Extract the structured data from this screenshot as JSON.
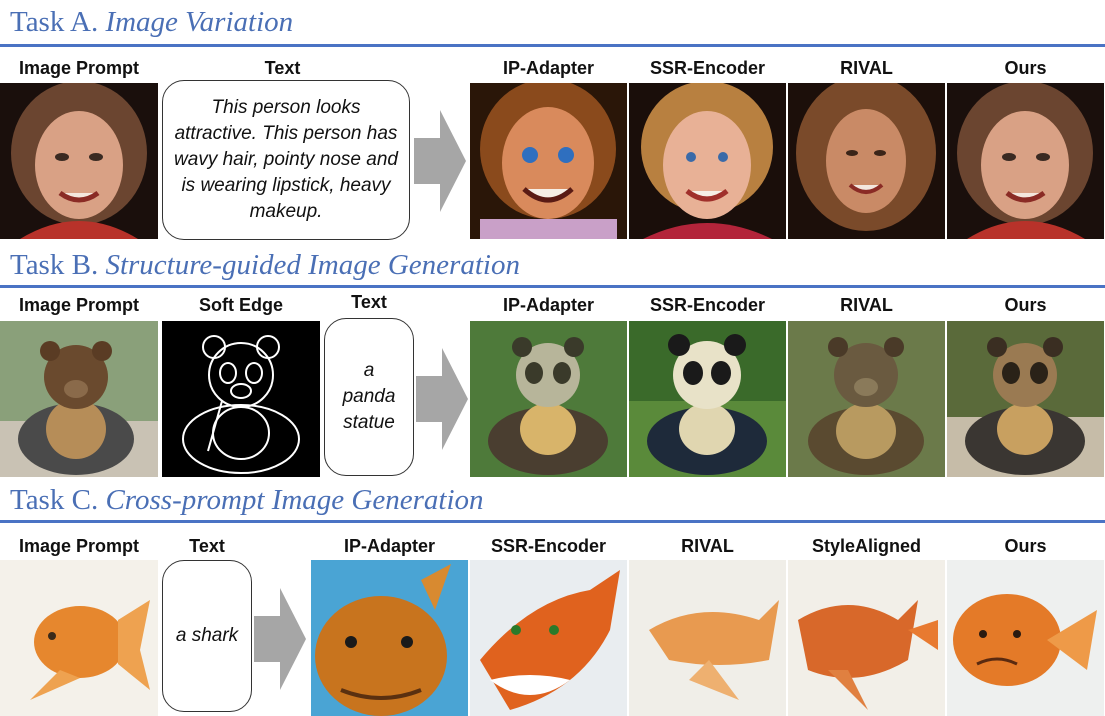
{
  "taskA": {
    "title_prefix": "Task A.",
    "title_name": "Image Variation",
    "labels": {
      "image_prompt": "Image Prompt",
      "text": "Text",
      "ip_adapter": "IP-Adapter",
      "ssr_encoder": "SSR-Encoder",
      "rival": "RIVAL",
      "ours": "Ours"
    },
    "text_prompt": "This person looks attractive.  This person has wavy hair, pointy nose and is wearing lipstick, heavy makeup."
  },
  "taskB": {
    "title_prefix": "Task B.",
    "title_name": "Structure-guided Image Generation",
    "labels": {
      "image_prompt": "Image Prompt",
      "soft_edge": "Soft Edge",
      "text": "Text",
      "ip_adapter": "IP-Adapter",
      "ssr_encoder": "SSR-Encoder",
      "rival": "RIVAL",
      "ours": "Ours"
    },
    "text_prompt": "a panda statue"
  },
  "taskC": {
    "title_prefix": "Task C.",
    "title_name": "Cross-prompt Image Generation",
    "labels": {
      "image_prompt": "Image Prompt",
      "text": "Text",
      "ip_adapter": "IP-Adapter",
      "ssr_encoder": "SSR-Encoder",
      "rival": "RIVAL",
      "stylealigned": "StyleAligned",
      "ours": "Ours"
    },
    "text_prompt": "a shark"
  },
  "colors": {
    "title": "#4a6fb5",
    "rule": "#4a73c4",
    "arrow": "#a6a6a6"
  }
}
